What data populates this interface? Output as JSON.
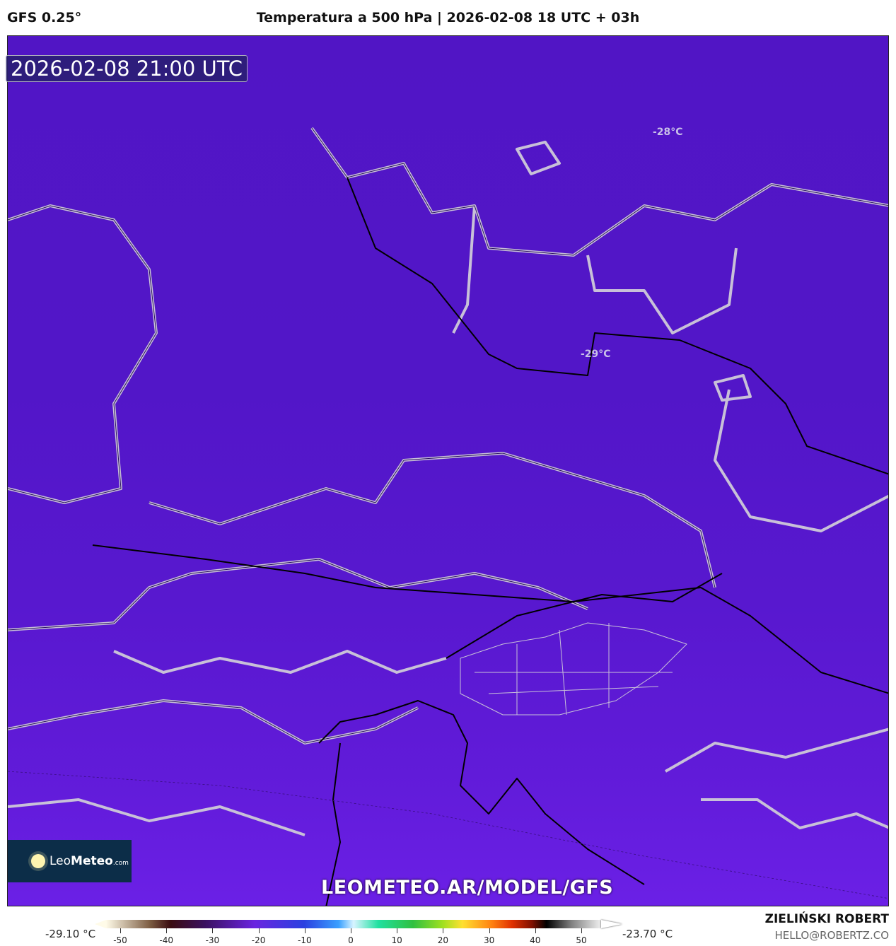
{
  "header": {
    "model": "GFS 0.25°",
    "title": "Temperatura a 500 hPa | 2026-02-08 18 UTC + 03h"
  },
  "map": {
    "valid_time": "2026-02-08 21:00 UTC",
    "contour_labels": [
      "-28°C",
      "-29°C"
    ],
    "watermark": "LEOMETEO.AR/MODEL/GFS",
    "logo": {
      "text_light": "Leo",
      "text_bold": "Meteo",
      "text_small": ".com",
      "icon": "sun-icon"
    },
    "colors": {
      "field_top": "#5115c5",
      "field_bottom": "#6b20e6",
      "border_outline": "#c8c0d8",
      "coast": "#000000"
    }
  },
  "colorbar": {
    "min_label": "-29.10 °C",
    "max_label": "-23.70 °C",
    "ticks": [
      "-50",
      "-40",
      "-30",
      "-20",
      "-10",
      "0",
      "10",
      "20",
      "30",
      "40",
      "50"
    ]
  },
  "footer": {
    "author": "ZIELIŃSKI ROBERT",
    "email": "HELLO@ROBERTZ.CO"
  }
}
